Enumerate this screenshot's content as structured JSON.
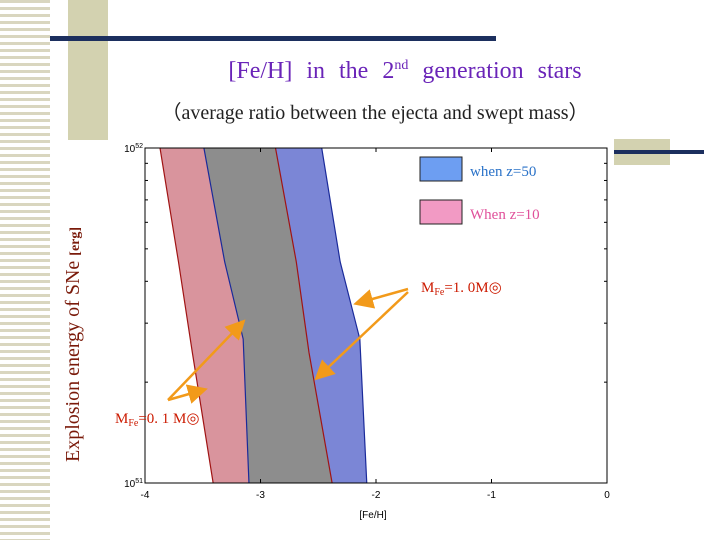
{
  "title": {
    "main": "[Fe/H]  in  the  2",
    "sup": "nd",
    "rest": " generation  stars"
  },
  "subtitle": "（average ratio between the ejecta and swept mass）",
  "colors": {
    "z50": "#7b86d6",
    "z10": "#d9949d",
    "overlap": "#8d8d8d",
    "accent": "#f29a1a",
    "label_red": "#cc1a00"
  },
  "chart_data": {
    "type": "area",
    "title": "[Fe/H] in the 2nd generation stars",
    "xlabel": "[Fe/H]",
    "ylabel": "Explosion energy of SNe [erg]",
    "xlim": [
      -4,
      0
    ],
    "ylim": [
      1e+51,
      1e+52
    ],
    "yscale": "log",
    "x_ticks": [
      "-4",
      "-3",
      "-2",
      "-1",
      "0"
    ],
    "y_ticks": [
      "10^51",
      "10^52"
    ],
    "legend": [
      {
        "label": "when z=50",
        "color": "#6d9ef2"
      },
      {
        "label": "When z=10",
        "color": "#f29ac4"
      }
    ],
    "series": [
      {
        "name": "z10 MFe=0.1 left",
        "points": [
          [
            -3.87,
            1e+52
          ],
          [
            -3.71,
            4.57e+51
          ],
          [
            -3.59,
            2.45e+51
          ],
          [
            -3.41,
            1e+51
          ]
        ]
      },
      {
        "name": "z50 MFe=0.1 left",
        "points": [
          [
            -3.49,
            1e+52
          ],
          [
            -3.31,
            4.57e+51
          ],
          [
            -3.15,
            2.69e+51
          ],
          [
            -3.1,
            1e+51
          ]
        ]
      },
      {
        "name": "z10 MFe=1.0 right",
        "points": [
          [
            -2.87,
            1e+52
          ],
          [
            -2.69,
            4.57e+51
          ],
          [
            -2.58,
            2.45e+51
          ],
          [
            -2.38,
            1e+51
          ]
        ]
      },
      {
        "name": "z50 MFe=1.0 right",
        "points": [
          [
            -2.47,
            1e+52
          ],
          [
            -2.31,
            4.57e+51
          ],
          [
            -2.14,
            2.69e+51
          ],
          [
            -2.08,
            1e+51
          ]
        ]
      }
    ],
    "annotations": [
      {
        "text_main": "M",
        "text_sub": "Fe",
        "text_val": "=1.  0M",
        "text_sym": "◎"
      },
      {
        "text_main": "M",
        "text_sub": "Fe",
        "text_val": "=0.  1 M",
        "text_sym": "◎"
      }
    ]
  }
}
